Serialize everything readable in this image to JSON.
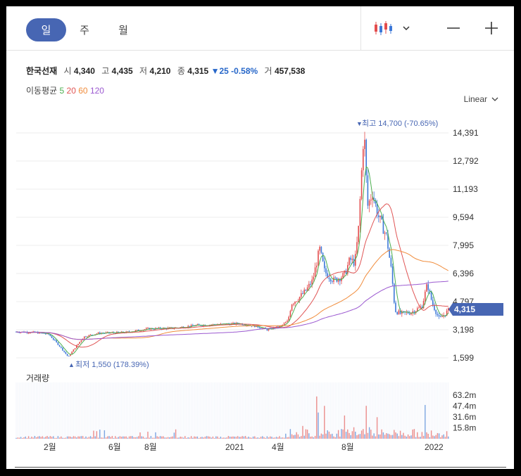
{
  "periods": [
    {
      "label": "일",
      "active": true
    },
    {
      "label": "주",
      "active": false
    },
    {
      "label": "월",
      "active": false
    }
  ],
  "toolbar": {
    "chart_type_icon": "candlestick-icon",
    "dropdown_icon": "chevron-down-icon",
    "zoom_out_icon": "minus-icon",
    "zoom_in_icon": "plus-icon"
  },
  "stock": {
    "name": "한국선재",
    "open_label": "시",
    "open": "4,340",
    "high_label": "고",
    "high": "4,435",
    "low_label": "저",
    "low": "4,210",
    "close_label": "종",
    "close": "4,315",
    "change": "25",
    "change_pct": "-0.58%",
    "volume_label": "거",
    "volume": "457,538"
  },
  "moving_average": {
    "label": "이동평균",
    "periods": [
      {
        "value": "5",
        "color": "#4caf50"
      },
      {
        "value": "20",
        "color": "#e05555"
      },
      {
        "value": "60",
        "color": "#f08c3c"
      },
      {
        "value": "120",
        "color": "#9b59d0"
      }
    ]
  },
  "scale": {
    "label": "Linear"
  },
  "annotations": {
    "max_label": "최고 14,700 (-70.65%)",
    "min_label": "최저 1,550 (178.39%)",
    "current_price": "4,315"
  },
  "volume_title": "거래량",
  "colors": {
    "accent": "#4766b3",
    "up": "#e34d4d",
    "down": "#3c78d8",
    "current_badge": "#4766b3"
  },
  "chart_data": {
    "type": "line",
    "y_ticks": [
      "14,391",
      "12,792",
      "11,193",
      "9,594",
      "7,995",
      "6,396",
      "4,797",
      "3,198",
      "1,599"
    ],
    "ylim": [
      1000,
      15000
    ],
    "x_ticks": [
      "2월",
      "6월",
      "8월",
      "2021",
      "4월",
      "8월",
      "2022"
    ],
    "volume_ticks": [
      "63.2m",
      "47.4m",
      "31.6m",
      "15.8m"
    ],
    "series": [
      {
        "name": "5",
        "color": "#4caf50"
      },
      {
        "name": "20",
        "color": "#e05555"
      },
      {
        "name": "60",
        "color": "#f08c3c"
      },
      {
        "name": "120",
        "color": "#9b59d0"
      }
    ],
    "max": 14700,
    "min": 1550,
    "last": 4315
  }
}
